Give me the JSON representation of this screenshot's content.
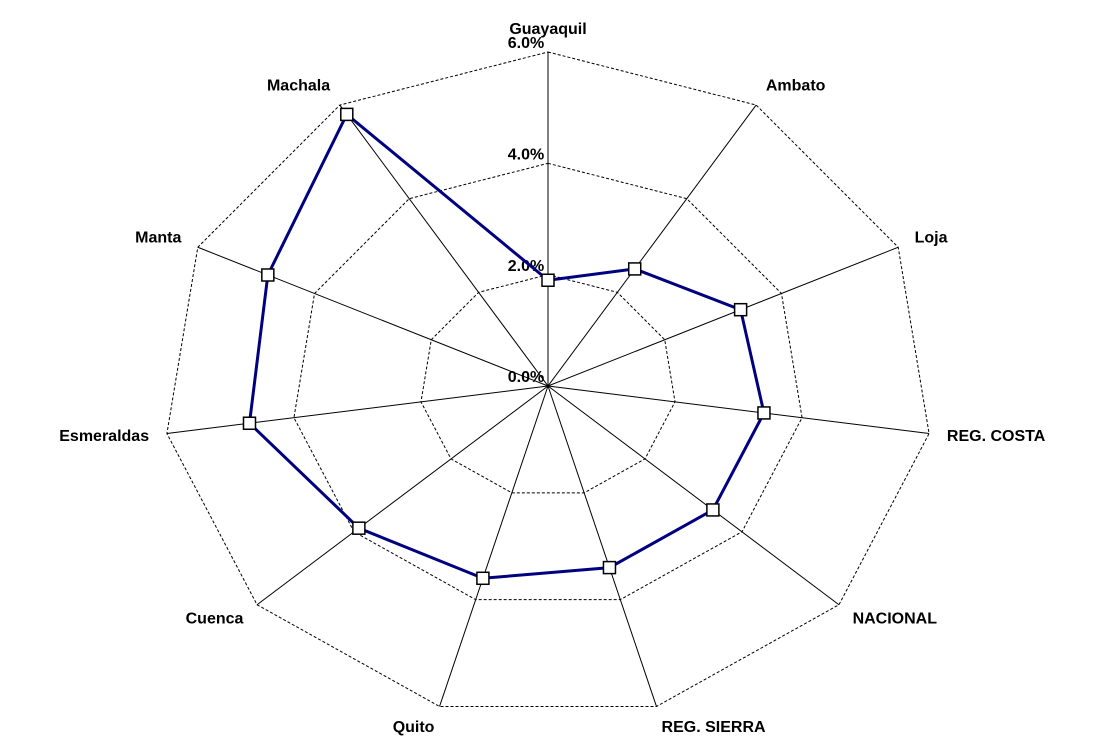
{
  "chart_data": {
    "type": "radar",
    "categories": [
      "Guayaquil",
      "Ambato",
      "Loja",
      "REG. COSTA",
      "NACIONAL",
      "REG. SIERRA",
      "Quito",
      "Cuenca",
      "Esmeraldas",
      "Manta",
      "Machala"
    ],
    "series": [
      {
        "color": "#000080",
        "values": [
          1.9,
          2.5,
          3.3,
          3.4,
          3.4,
          3.4,
          3.6,
          3.9,
          4.7,
          4.8,
          5.8
        ]
      }
    ],
    "rlim": [
      0,
      6
    ],
    "rticks": [
      {
        "value": 0,
        "label": "0.0%"
      },
      {
        "value": 2,
        "label": "2.0%"
      },
      {
        "value": 4,
        "label": "4.0%"
      },
      {
        "value": 6,
        "label": "6.0%"
      }
    ],
    "grid": true
  }
}
